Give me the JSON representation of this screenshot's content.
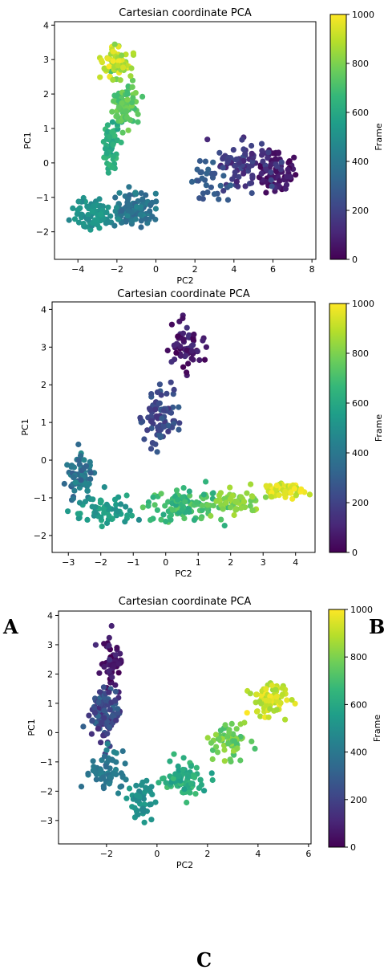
{
  "panel_labels": [
    "A",
    "B",
    "C"
  ],
  "colorbar": {
    "label": "Frame",
    "ticks": [
      0,
      200,
      400,
      600,
      800,
      1000
    ],
    "colormap": "viridis",
    "stops": [
      "#440154",
      "#482878",
      "#3e4989",
      "#31688e",
      "#26828e",
      "#1f9e89",
      "#35b779",
      "#6ece58",
      "#b5de2b",
      "#fde725"
    ]
  },
  "chart_data": [
    {
      "type": "scatter",
      "title": "Cartesian coordinate PCA",
      "xlabel": "PC2",
      "ylabel": "PC1",
      "xlim": [
        -5.2,
        8.2
      ],
      "ylim": [
        -2.8,
        4.1
      ],
      "xticks": [
        -4,
        -2,
        0,
        2,
        4,
        6,
        8
      ],
      "yticks": [
        -2,
        -1,
        0,
        1,
        2,
        3,
        4
      ],
      "color_by": "Frame",
      "clusters": [
        {
          "frames": [
            0,
            100
          ],
          "center": [
            6.2,
            -0.3
          ],
          "spread": [
            0.7,
            0.55
          ],
          "count": 70
        },
        {
          "frames": [
            100,
            250
          ],
          "center": [
            4.6,
            0.0
          ],
          "spread": [
            1.3,
            0.55
          ],
          "count": 90
        },
        {
          "frames": [
            250,
            320
          ],
          "center": [
            2.8,
            -0.6
          ],
          "spread": [
            0.9,
            0.45
          ],
          "count": 30
        },
        {
          "frames": [
            320,
            460
          ],
          "center": [
            -1.2,
            -1.4
          ],
          "spread": [
            0.9,
            0.42
          ],
          "count": 110
        },
        {
          "frames": [
            460,
            560
          ],
          "center": [
            -3.2,
            -1.45
          ],
          "spread": [
            0.9,
            0.35
          ],
          "count": 80
        },
        {
          "frames": [
            560,
            680
          ],
          "center": [
            -2.3,
            0.5
          ],
          "spread": [
            0.4,
            0.6
          ],
          "count": 60
        },
        {
          "frames": [
            680,
            800
          ],
          "center": [
            -1.6,
            1.7
          ],
          "spread": [
            0.5,
            0.5
          ],
          "count": 70
        },
        {
          "frames": [
            800,
            1000
          ],
          "center": [
            -2.0,
            2.9
          ],
          "spread": [
            0.6,
            0.35
          ],
          "count": 80
        }
      ]
    },
    {
      "type": "scatter",
      "title": "Cartesian coordinate PCA",
      "xlabel": "PC2",
      "ylabel": "PC1",
      "xlim": [
        -3.5,
        4.6
      ],
      "ylim": [
        -2.45,
        4.2
      ],
      "xticks": [
        -3,
        -2,
        -1,
        0,
        1,
        2,
        3,
        4
      ],
      "yticks": [
        -2,
        -1,
        0,
        1,
        2,
        3,
        4
      ],
      "color_by": "Frame",
      "clusters": [
        {
          "frames": [
            0,
            150
          ],
          "center": [
            0.6,
            3.0
          ],
          "spread": [
            0.45,
            0.5
          ],
          "count": 60
        },
        {
          "frames": [
            150,
            300
          ],
          "center": [
            -0.2,
            1.2
          ],
          "spread": [
            0.45,
            0.7
          ],
          "count": 80
        },
        {
          "frames": [
            300,
            480
          ],
          "center": [
            -2.6,
            -0.4
          ],
          "spread": [
            0.4,
            0.45
          ],
          "count": 70
        },
        {
          "frames": [
            480,
            600
          ],
          "center": [
            -1.8,
            -1.4
          ],
          "spread": [
            0.7,
            0.3
          ],
          "count": 60
        },
        {
          "frames": [
            600,
            760
          ],
          "center": [
            0.6,
            -1.2
          ],
          "spread": [
            0.9,
            0.35
          ],
          "count": 110
        },
        {
          "frames": [
            760,
            880
          ],
          "center": [
            2.2,
            -1.1
          ],
          "spread": [
            0.6,
            0.25
          ],
          "count": 60
        },
        {
          "frames": [
            880,
            1000
          ],
          "center": [
            3.6,
            -0.8
          ],
          "spread": [
            0.5,
            0.17
          ],
          "count": 60
        }
      ]
    },
    {
      "type": "scatter",
      "title": "Cartesian coordinate PCA",
      "xlabel": "PC2",
      "ylabel": "PC1",
      "xlim": [
        -3.9,
        6.1
      ],
      "ylim": [
        -3.8,
        4.15
      ],
      "xticks": [
        -2,
        0,
        2,
        4,
        6
      ],
      "yticks": [
        -3,
        -2,
        -1,
        0,
        1,
        2,
        3,
        4
      ],
      "color_by": "Frame",
      "clusters": [
        {
          "frames": [
            0,
            120
          ],
          "center": [
            -1.8,
            2.5
          ],
          "spread": [
            0.45,
            0.7
          ],
          "count": 55
        },
        {
          "frames": [
            120,
            350
          ],
          "center": [
            -2.1,
            0.7
          ],
          "spread": [
            0.45,
            0.8
          ],
          "count": 120
        },
        {
          "frames": [
            350,
            460
          ],
          "center": [
            -2.0,
            -1.3
          ],
          "spread": [
            0.55,
            0.5
          ],
          "count": 60
        },
        {
          "frames": [
            460,
            550
          ],
          "center": [
            -0.6,
            -2.4
          ],
          "spread": [
            0.4,
            0.5
          ],
          "count": 45
        },
        {
          "frames": [
            550,
            700
          ],
          "center": [
            1.0,
            -1.6
          ],
          "spread": [
            0.6,
            0.5
          ],
          "count": 90
        },
        {
          "frames": [
            700,
            850
          ],
          "center": [
            2.9,
            -0.2
          ],
          "spread": [
            0.6,
            0.5
          ],
          "count": 70
        },
        {
          "frames": [
            850,
            1000
          ],
          "center": [
            4.4,
            1.1
          ],
          "spread": [
            0.6,
            0.45
          ],
          "count": 80
        }
      ]
    }
  ]
}
